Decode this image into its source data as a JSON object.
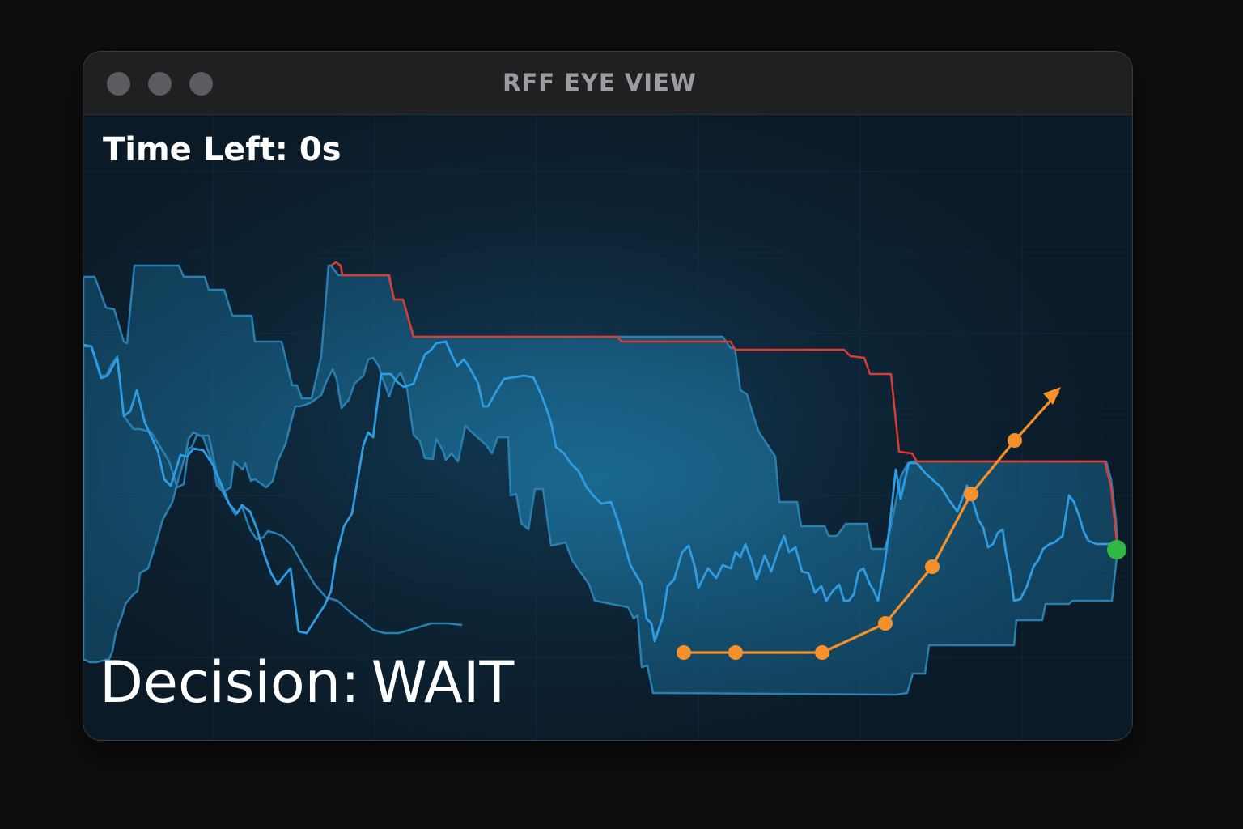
{
  "window": {
    "title": "RFF EYE VIEW"
  },
  "hud": {
    "time_left_label": "Time Left:",
    "time_left_value": "0s",
    "decision_label": "Decision:",
    "decision_value": "WAIT"
  },
  "colors": {
    "background": "#0d1a26",
    "band_fill": "#1b6f99",
    "band_edge": "#2a7fb0",
    "median_line": "#2f9be0",
    "upper_limit": "#e03b30",
    "trajectory": "#f5902a",
    "current_marker": "#2fb944"
  },
  "icons": {
    "close": "traffic-light-close-icon",
    "minimize": "traffic-light-minimize-icon",
    "zoom": "traffic-light-zoom-icon",
    "arrow": "arrow-head-icon"
  }
}
